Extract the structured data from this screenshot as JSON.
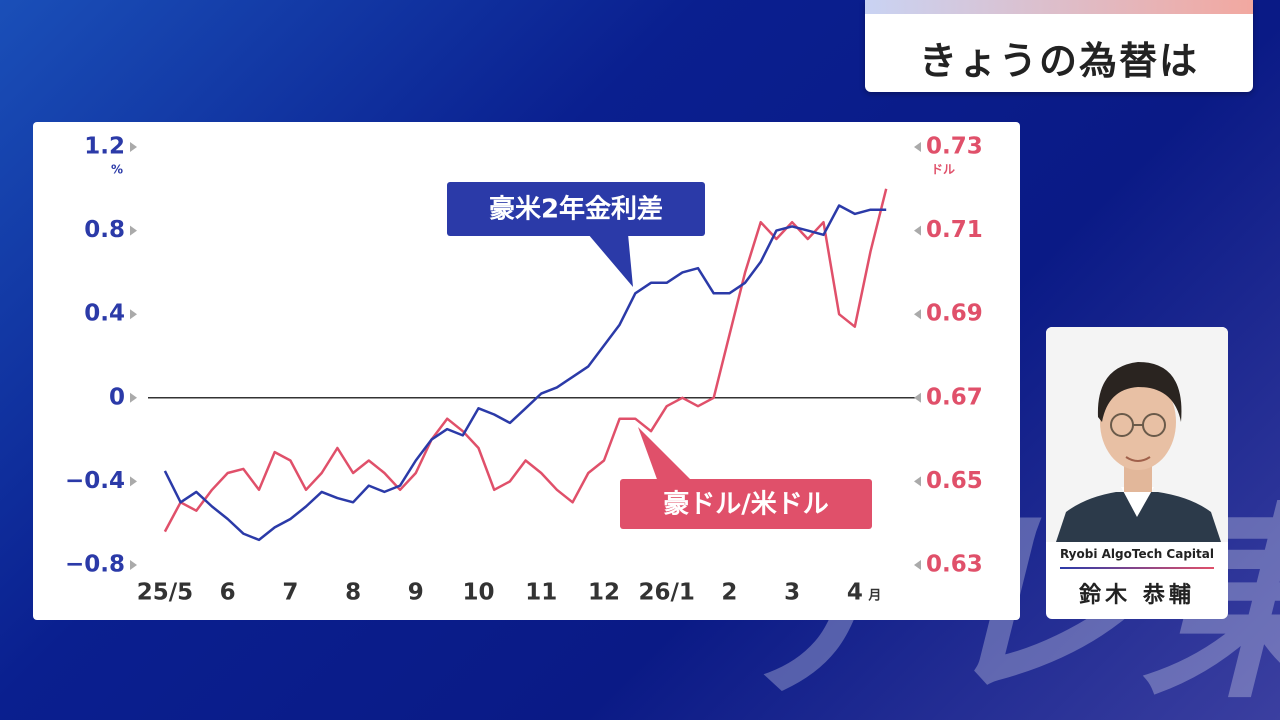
{
  "header": {
    "title": "きょうの為替は"
  },
  "card": {
    "company": "Ryobi AlgoTech Capital",
    "name": "鈴木 恭輔"
  },
  "watermark": "テレ東",
  "chart_data": {
    "type": "line",
    "y_unit": "%",
    "y2_unit": "ドル",
    "x_unit": "月",
    "x": [
      0,
      0.25,
      0.5,
      0.75,
      1,
      1.25,
      1.5,
      1.75,
      2,
      2.25,
      2.5,
      2.75,
      3,
      3.25,
      3.5,
      3.75,
      4,
      4.25,
      4.5,
      4.75,
      5,
      5.25,
      5.5,
      5.75,
      6,
      6.25,
      6.5,
      6.75,
      7,
      7.25,
      7.5,
      7.75,
      8,
      8.25,
      8.5,
      8.75,
      9,
      9.25,
      9.5,
      9.75,
      10,
      10.25,
      10.5,
      10.75,
      11,
      11.25,
      11.5
    ],
    "xlim": [
      -0.27,
      11.8
    ],
    "xticks": [
      {
        "value": 0,
        "label": "25/5"
      },
      {
        "value": 1,
        "label": "6"
      },
      {
        "value": 2,
        "label": "7"
      },
      {
        "value": 3,
        "label": "8"
      },
      {
        "value": 4,
        "label": "9"
      },
      {
        "value": 5,
        "label": "10"
      },
      {
        "value": 6,
        "label": "11"
      },
      {
        "value": 7,
        "label": "12"
      },
      {
        "value": 8,
        "label": "26/1"
      },
      {
        "value": 9,
        "label": "2"
      },
      {
        "value": 10,
        "label": "3"
      },
      {
        "value": 11,
        "label": "4"
      }
    ],
    "ylim": [
      -0.8,
      1.2
    ],
    "yticks": [
      {
        "value": -0.8,
        "label": "−0.8"
      },
      {
        "value": -0.4,
        "label": "−0.4"
      },
      0,
      0.4,
      0.8,
      1.2
    ],
    "y2lim": [
      0.63,
      0.73
    ],
    "y2ticks": [
      0.63,
      0.65,
      0.67,
      0.69,
      0.71,
      0.73
    ],
    "series": [
      {
        "name": "豪米2年金利差",
        "color": "#2b3aa8",
        "axis": "y",
        "values": [
          -0.35,
          -0.5,
          -0.45,
          -0.52,
          -0.58,
          -0.65,
          -0.68,
          -0.62,
          -0.58,
          -0.52,
          -0.45,
          -0.48,
          -0.5,
          -0.42,
          -0.45,
          -0.42,
          -0.3,
          -0.2,
          -0.15,
          -0.18,
          -0.05,
          -0.08,
          -0.12,
          -0.05,
          0.02,
          0.05,
          0.1,
          0.15,
          0.25,
          0.35,
          0.5,
          0.55,
          0.55,
          0.6,
          0.62,
          0.5,
          0.5,
          0.55,
          0.65,
          0.8,
          0.82,
          0.8,
          0.78,
          0.92,
          0.88,
          0.9,
          0.9
        ]
      },
      {
        "name": "豪ドル/米ドル",
        "color": "#e0506a",
        "axis": "y2",
        "values": [
          0.638,
          0.645,
          0.643,
          0.648,
          0.652,
          0.653,
          0.648,
          0.657,
          0.655,
          0.648,
          0.652,
          0.658,
          0.652,
          0.655,
          0.652,
          0.648,
          0.652,
          0.66,
          0.665,
          0.662,
          0.658,
          0.648,
          0.65,
          0.655,
          0.652,
          0.648,
          0.645,
          0.652,
          0.655,
          0.665,
          0.665,
          0.662,
          0.668,
          0.67,
          0.668,
          0.67,
          0.685,
          0.7,
          0.712,
          0.708,
          0.712,
          0.708,
          0.712,
          0.69,
          0.687,
          0.705,
          0.72
        ]
      }
    ]
  }
}
